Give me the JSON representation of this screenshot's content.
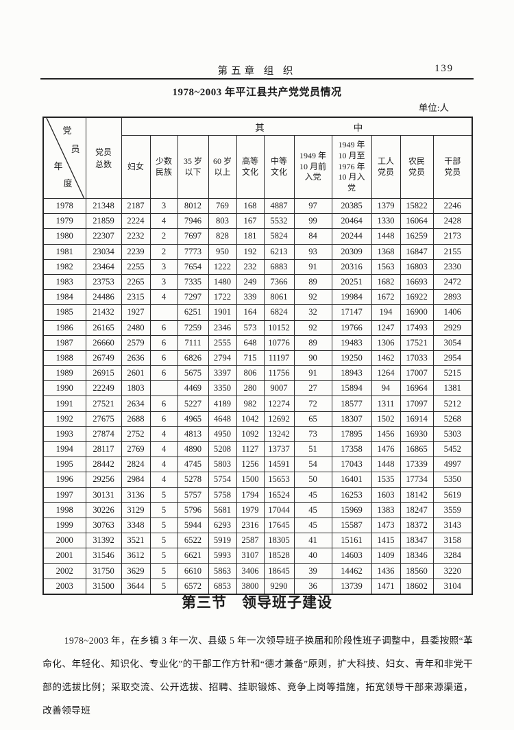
{
  "page": {
    "chapter_header": "第五章  组  织",
    "page_number": "139",
    "table_title": "1978~2003 年平江县共产党党员情况",
    "unit_label": "单位:人"
  },
  "table": {
    "corner": {
      "top_right": "党员",
      "bottom_left": "年度"
    },
    "col_total": "党员\n总数",
    "span_left": "其",
    "span_right": "中",
    "sub_columns": [
      "妇女",
      "少数\n民族",
      "35 岁\n以下",
      "60 岁\n以上",
      "高等\n文化",
      "中等\n文化",
      "1949 年\n10 月前\n入党",
      "1949 年\n10 月至\n1976 年\n10 月入\n党",
      "工人\n党员",
      "农民\n党员",
      "干部\n党员"
    ],
    "rows": [
      [
        "1978",
        "21348",
        "2187",
        "3",
        "8012",
        "769",
        "168",
        "4887",
        "97",
        "20385",
        "1379",
        "15822",
        "2246"
      ],
      [
        "1979",
        "21859",
        "2224",
        "4",
        "7946",
        "803",
        "167",
        "5532",
        "99",
        "20464",
        "1330",
        "16064",
        "2428"
      ],
      [
        "1980",
        "22307",
        "2232",
        "2",
        "7697",
        "828",
        "181",
        "5824",
        "84",
        "20244",
        "1448",
        "16259",
        "2173"
      ],
      [
        "1981",
        "23034",
        "2239",
        "2",
        "7773",
        "950",
        "192",
        "6213",
        "93",
        "20309",
        "1368",
        "16847",
        "2155"
      ],
      [
        "1982",
        "23464",
        "2255",
        "3",
        "7654",
        "1222",
        "232",
        "6883",
        "91",
        "20316",
        "1563",
        "16803",
        "2330"
      ],
      [
        "1983",
        "23753",
        "2265",
        "3",
        "7335",
        "1480",
        "249",
        "7366",
        "89",
        "20251",
        "1682",
        "16693",
        "2472"
      ],
      [
        "1984",
        "24486",
        "2315",
        "4",
        "7297",
        "1722",
        "339",
        "8061",
        "92",
        "19984",
        "1672",
        "16922",
        "2893"
      ],
      [
        "1985",
        "21432",
        "1927",
        "",
        "6251",
        "1901",
        "164",
        "6824",
        "32",
        "17147",
        "194",
        "16900",
        "1406"
      ],
      [
        "1986",
        "26165",
        "2480",
        "6",
        "7259",
        "2346",
        "573",
        "10152",
        "92",
        "19766",
        "1247",
        "17493",
        "2929"
      ],
      [
        "1987",
        "26660",
        "2579",
        "6",
        "7111",
        "2555",
        "648",
        "10776",
        "89",
        "19483",
        "1306",
        "17521",
        "3054"
      ],
      [
        "1988",
        "26749",
        "2636",
        "6",
        "6826",
        "2794",
        "715",
        "11197",
        "90",
        "19250",
        "1462",
        "17033",
        "2954"
      ],
      [
        "1989",
        "26915",
        "2601",
        "6",
        "5675",
        "3397",
        "806",
        "11756",
        "91",
        "18943",
        "1264",
        "17007",
        "5215"
      ],
      [
        "1990",
        "22249",
        "1803",
        "",
        "4469",
        "3350",
        "280",
        "9007",
        "27",
        "15894",
        "94",
        "16964",
        "1381"
      ],
      [
        "1991",
        "27521",
        "2634",
        "6",
        "5227",
        "4189",
        "982",
        "12274",
        "72",
        "18577",
        "1311",
        "17097",
        "5212"
      ],
      [
        "1992",
        "27675",
        "2688",
        "6",
        "4965",
        "4648",
        "1042",
        "12692",
        "65",
        "18307",
        "1502",
        "16914",
        "5268"
      ],
      [
        "1993",
        "27874",
        "2752",
        "4",
        "4813",
        "4950",
        "1092",
        "13242",
        "73",
        "17895",
        "1456",
        "16930",
        "5303"
      ],
      [
        "1994",
        "28117",
        "2769",
        "4",
        "4890",
        "5208",
        "1127",
        "13737",
        "51",
        "17358",
        "1476",
        "16865",
        "5452"
      ],
      [
        "1995",
        "28442",
        "2824",
        "4",
        "4745",
        "5803",
        "1256",
        "14591",
        "54",
        "17043",
        "1448",
        "17339",
        "4997"
      ],
      [
        "1996",
        "29256",
        "2984",
        "4",
        "5278",
        "5754",
        "1500",
        "15653",
        "50",
        "16401",
        "1535",
        "17734",
        "5350"
      ],
      [
        "1997",
        "30131",
        "3136",
        "5",
        "5757",
        "5758",
        "1794",
        "16524",
        "45",
        "16253",
        "1603",
        "18142",
        "5619"
      ],
      [
        "1998",
        "30226",
        "3129",
        "5",
        "5796",
        "5681",
        "1979",
        "17044",
        "45",
        "15969",
        "1383",
        "18247",
        "3559"
      ],
      [
        "1999",
        "30763",
        "3348",
        "5",
        "5944",
        "6293",
        "2316",
        "17645",
        "45",
        "15587",
        "1473",
        "18372",
        "3143"
      ],
      [
        "2000",
        "31392",
        "3521",
        "5",
        "6522",
        "5919",
        "2587",
        "18305",
        "41",
        "15161",
        "1415",
        "18347",
        "3158"
      ],
      [
        "2001",
        "31546",
        "3612",
        "5",
        "6621",
        "5993",
        "3107",
        "18528",
        "40",
        "14603",
        "1409",
        "18346",
        "3284"
      ],
      [
        "2002",
        "31750",
        "3629",
        "5",
        "6610",
        "5863",
        "3406",
        "18645",
        "39",
        "14462",
        "1436",
        "18560",
        "3220"
      ],
      [
        "2003",
        "31500",
        "3644",
        "5",
        "6572",
        "6853",
        "3800",
        "9290",
        "36",
        "13739",
        "1471",
        "18602",
        "3104"
      ]
    ]
  },
  "section": {
    "title": "第三节　领导班子建设",
    "paragraph": "1978~2003 年，在乡镇 3 年一次、县级 5 年一次领导班子换届和阶段性班子调整中，县委按照“革命化、年轻化、知识化、专业化”的干部工作方针和“德才兼备”原则，扩大科技、妇女、青年和非党干部的选拔比例；采取交流、公开选拔、招聘、挂职锻炼、竞争上岗等措施，拓宽领导干部来源渠道，改善领导班"
  }
}
